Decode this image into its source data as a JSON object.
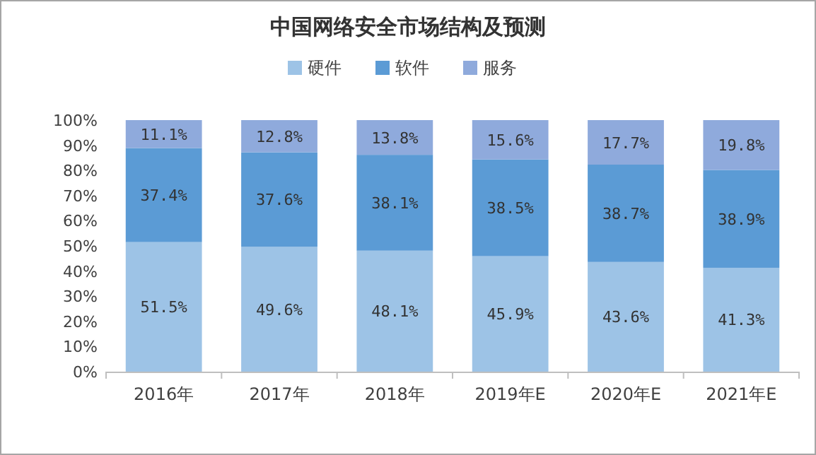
{
  "chart_data": {
    "type": "bar",
    "stacked": true,
    "title": "中国网络安全市场结构及预测",
    "categories": [
      "2016年",
      "2017年",
      "2018年",
      "2019年E",
      "2020年E",
      "2021年E"
    ],
    "series": [
      {
        "name": "硬件",
        "color": "#9dc3e6",
        "values": [
          51.5,
          49.6,
          48.1,
          45.9,
          43.6,
          41.3
        ],
        "value_labels": [
          "51.5%",
          "49.6%",
          "48.1%",
          "45.9%",
          "43.6%",
          "41.3%"
        ]
      },
      {
        "name": "软件",
        "color": "#5b9bd5",
        "values": [
          37.4,
          37.6,
          38.1,
          38.5,
          38.7,
          38.9
        ],
        "value_labels": [
          "37.4%",
          "37.6%",
          "38.1%",
          "38.5%",
          "38.7%",
          "38.9%"
        ]
      },
      {
        "name": "服务",
        "color": "#8faadc",
        "values": [
          11.1,
          12.8,
          13.8,
          15.6,
          17.7,
          19.8
        ],
        "value_labels": [
          "11.1%",
          "12.8%",
          "13.8%",
          "15.6%",
          "17.7%",
          "19.8%"
        ]
      }
    ],
    "ylim": [
      0,
      100
    ],
    "yticks": [
      {
        "value": 0,
        "label": "0%"
      },
      {
        "value": 10,
        "label": "10%"
      },
      {
        "value": 20,
        "label": "20%"
      },
      {
        "value": 30,
        "label": "30%"
      },
      {
        "value": 40,
        "label": "40%"
      },
      {
        "value": 50,
        "label": "50%"
      },
      {
        "value": 60,
        "label": "60%"
      },
      {
        "value": 70,
        "label": "70%"
      },
      {
        "value": 80,
        "label": "80%"
      },
      {
        "value": 90,
        "label": "90%"
      },
      {
        "value": 100,
        "label": "100%"
      }
    ],
    "legend": "top",
    "grid": false
  }
}
